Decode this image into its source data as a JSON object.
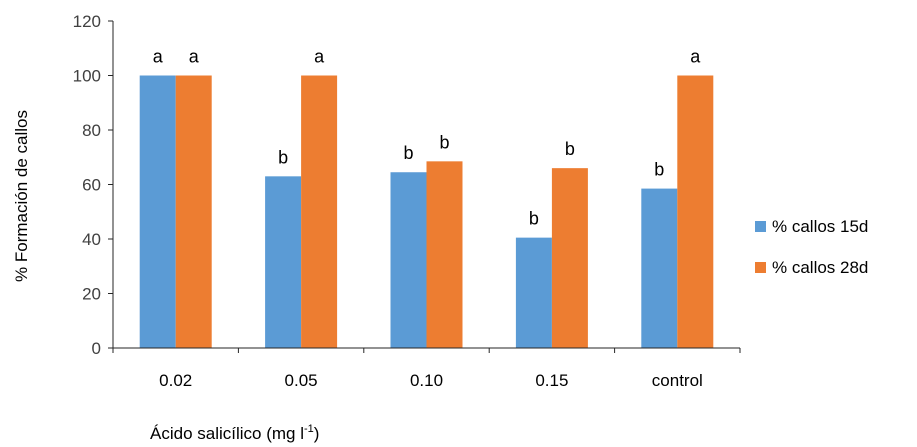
{
  "chart_data": {
    "type": "bar",
    "title": "",
    "xlabel": "Ácido salicílico (mg l",
    "xlabel_sup": "-1",
    "xlabel_suffix": ")",
    "ylabel": "% Formación de callos",
    "ylim": [
      0,
      120
    ],
    "yticks": [
      0,
      20,
      40,
      60,
      80,
      100,
      120
    ],
    "categories": [
      "0.02",
      "0.05",
      "0.10",
      "0.15",
      "control"
    ],
    "series": [
      {
        "name": "% callos 15d",
        "color": "#5B9BD5",
        "values": [
          100,
          63,
          64.5,
          40.5,
          58.5
        ],
        "labels": [
          "a",
          "b",
          "b",
          "b",
          "b"
        ]
      },
      {
        "name": "% callos 28d",
        "color": "#ED7D31",
        "values": [
          100,
          100,
          68.5,
          66,
          100
        ],
        "labels": [
          "a",
          "a",
          "b",
          "b",
          "a"
        ]
      }
    ],
    "grid": false,
    "legend": "right"
  }
}
